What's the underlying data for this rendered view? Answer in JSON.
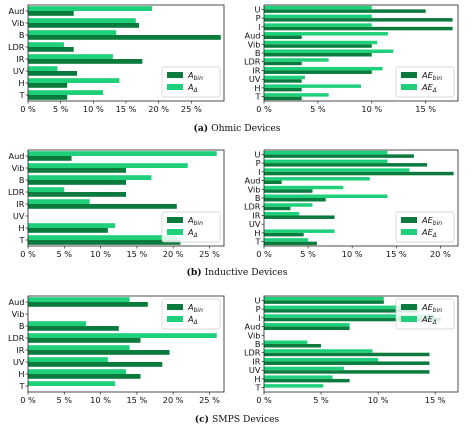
{
  "colors": {
    "bin": "#0a7a3d",
    "delta": "#1fd07a",
    "axis": "#222222"
  },
  "captions": [
    {
      "label": "(a)",
      "text": "Ohmic Devices"
    },
    {
      "label": "(b)",
      "text": "Inductive Devices"
    },
    {
      "label": "(c)",
      "text": "SMPS Devices"
    }
  ],
  "chart_data": [
    {
      "type": "bar",
      "orientation": "horizontal",
      "panel": "a-left",
      "categories": [
        "Aud",
        "Vib",
        "B",
        "LDR",
        "IR",
        "UV",
        "H",
        "T"
      ],
      "series": [
        {
          "name": "A_bin",
          "legend_main": "A",
          "legend_sub": "bin",
          "values": [
            7,
            17,
            29.5,
            7,
            17.5,
            7.5,
            6,
            6
          ]
        },
        {
          "name": "A_Δ",
          "legend_main": "A",
          "legend_sub": "Δ",
          "values": [
            19,
            16.5,
            13.5,
            5.5,
            13,
            4.5,
            14,
            11.5
          ]
        }
      ],
      "xlim": [
        0,
        30
      ],
      "xticks": [
        "0 %",
        "5 %",
        "10 %",
        "15 %",
        "20 %",
        "25 %"
      ],
      "xtick_values": [
        0,
        5,
        10,
        15,
        20,
        25
      ],
      "legend": "lower-right"
    },
    {
      "type": "bar",
      "orientation": "horizontal",
      "panel": "a-right",
      "categories": [
        "U",
        "P",
        "I",
        "Aud",
        "Vib",
        "B",
        "LDR",
        "IR",
        "UV",
        "H",
        "T"
      ],
      "series": [
        {
          "name": "AE_bin",
          "legend_main": "AE",
          "legend_sub": "bin",
          "values": [
            15,
            17.5,
            17.5,
            3.5,
            10,
            10,
            3.5,
            10,
            3.5,
            3.5,
            3.5
          ]
        },
        {
          "name": "AE_Δ",
          "legend_main": "AE",
          "legend_sub": "Δ",
          "values": [
            10,
            10,
            10,
            11.5,
            10.5,
            12,
            6,
            11,
            3.8,
            9,
            6
          ]
        }
      ],
      "xlim": [
        0,
        18
      ],
      "xticks": [
        "0 %",
        "5 %",
        "10 %",
        "15 %"
      ],
      "xtick_values": [
        0,
        5,
        10,
        15
      ],
      "legend": "lower-right"
    },
    {
      "type": "bar",
      "orientation": "horizontal",
      "panel": "b-left",
      "categories": [
        "Aud",
        "Vib",
        "B",
        "LDR",
        "IR",
        "UV",
        "H",
        "T"
      ],
      "series": [
        {
          "name": "A_bin",
          "legend_main": "A",
          "legend_sub": "bin",
          "values": [
            6,
            13.5,
            13.5,
            13.5,
            20.5,
            0,
            11,
            21
          ]
        },
        {
          "name": "A_Δ",
          "legend_main": "A",
          "legend_sub": "Δ",
          "values": [
            26,
            22,
            17,
            5,
            8.5,
            0,
            12,
            20.5
          ]
        }
      ],
      "xlim": [
        0,
        27
      ],
      "xticks": [
        "0 %",
        "5 %",
        "10 %",
        "15 %",
        "20 %",
        "25 %"
      ],
      "xtick_values": [
        0,
        5,
        10,
        15,
        20,
        25
      ],
      "legend": "lower-right"
    },
    {
      "type": "bar",
      "orientation": "horizontal",
      "panel": "b-right",
      "categories": [
        "U",
        "P",
        "I",
        "Aud",
        "Vib",
        "B",
        "LDR",
        "IR",
        "UV",
        "H",
        "T"
      ],
      "series": [
        {
          "name": "AE_bin",
          "legend_main": "AE",
          "legend_sub": "bin",
          "values": [
            17,
            18.5,
            21.5,
            2,
            5.5,
            7,
            3,
            8,
            0,
            4.5,
            6
          ]
        },
        {
          "name": "AE_Δ",
          "legend_main": "AE",
          "legend_sub": "Δ",
          "values": [
            14,
            14,
            16.5,
            12,
            9,
            14,
            5.5,
            4,
            0,
            8,
            5
          ]
        }
      ],
      "xlim": [
        0,
        22
      ],
      "xticks": [
        "0 %",
        "5 %",
        "10 %",
        "15 %",
        "20 %"
      ],
      "xtick_values": [
        0,
        5,
        10,
        15,
        20
      ],
      "legend": "lower-right"
    },
    {
      "type": "bar",
      "orientation": "horizontal",
      "panel": "c-left",
      "categories": [
        "Aud",
        "Vib",
        "B",
        "LDR",
        "IR",
        "UV",
        "H",
        "T"
      ],
      "series": [
        {
          "name": "A_bin",
          "legend_main": "A",
          "legend_sub": "bin",
          "values": [
            16.5,
            0,
            12.5,
            15.5,
            19.5,
            18.5,
            15.5,
            0
          ]
        },
        {
          "name": "A_Δ",
          "legend_main": "A",
          "legend_sub": "Δ",
          "values": [
            14,
            0,
            8,
            26,
            14,
            11,
            13.5,
            12
          ]
        }
      ],
      "xlim": [
        0,
        27
      ],
      "xticks": [
        "0 %",
        "5 %",
        "10 %",
        "15 %",
        "20 %",
        "25 %"
      ],
      "xtick_values": [
        0,
        5,
        10,
        15,
        20,
        25
      ],
      "legend": "top-right"
    },
    {
      "type": "bar",
      "orientation": "horizontal",
      "panel": "c-right",
      "categories": [
        "U",
        "P",
        "I",
        "Aud",
        "Vib",
        "B",
        "LDR",
        "IR",
        "UV",
        "H",
        "T"
      ],
      "series": [
        {
          "name": "AE_bin",
          "legend_main": "AE",
          "legend_sub": "bin",
          "values": [
            10.5,
            13.5,
            15.5,
            7.5,
            0,
            5,
            14.5,
            14.5,
            14.5,
            7.5,
            0
          ]
        },
        {
          "name": "AE_Δ",
          "legend_main": "AE",
          "legend_sub": "Δ",
          "values": [
            10.5,
            13.5,
            15,
            7.5,
            0,
            3.8,
            9.5,
            10,
            7,
            6,
            5.2
          ]
        }
      ],
      "xlim": [
        0,
        17
      ],
      "xticks": [
        "0 %",
        "5 %",
        "10 %",
        "15 %"
      ],
      "xtick_values": [
        0,
        5,
        10,
        15
      ],
      "legend": "top-right"
    }
  ]
}
